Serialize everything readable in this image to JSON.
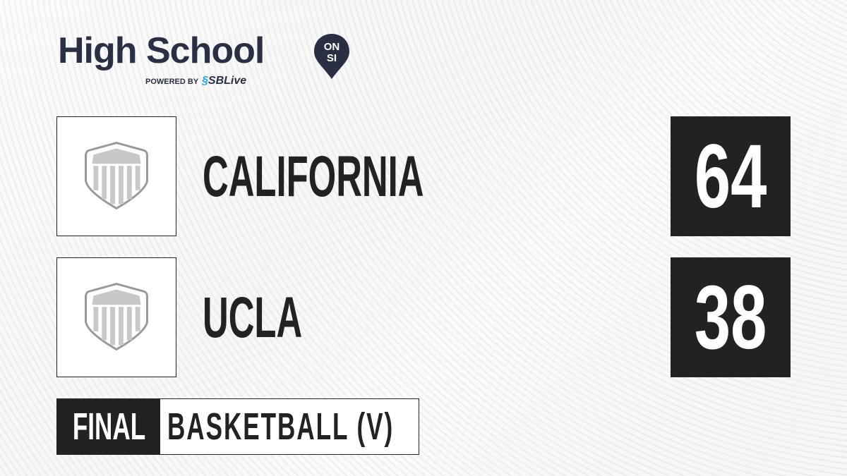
{
  "brand": {
    "title": "High School",
    "badge_top": "ON",
    "badge_bottom": "SI",
    "powered_by": "POWERED BY",
    "partner": "SBLive",
    "navy": "#2b2f44",
    "partner_accent": "#28a6e0"
  },
  "teams": [
    {
      "name": "CALIFORNIA",
      "score": "64",
      "logo_icon": "shield-placeholder-icon"
    },
    {
      "name": "UCLA",
      "score": "38",
      "logo_icon": "shield-placeholder-icon"
    }
  ],
  "game": {
    "status": "FINAL",
    "sport": "BASKETBALL (V)"
  }
}
